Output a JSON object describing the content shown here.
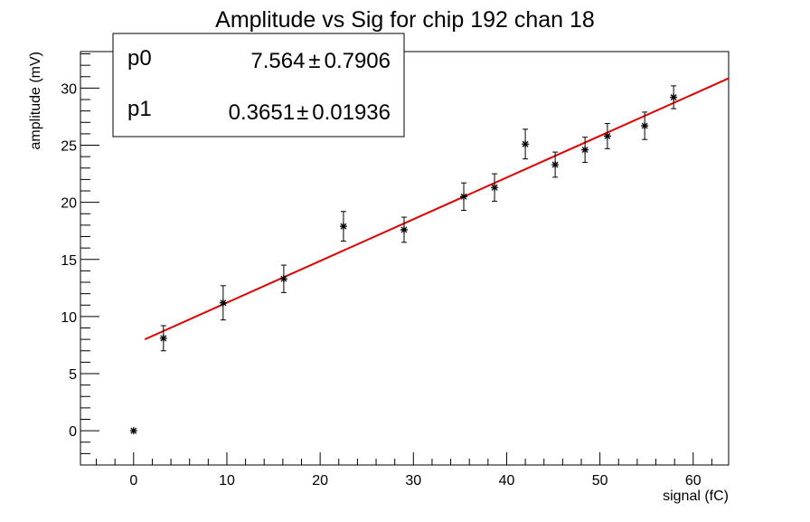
{
  "chart_data": {
    "type": "scatter",
    "title": "Amplitude vs Sig for chip 192 chan 18",
    "xlabel": "signal (fC)",
    "ylabel": "amplitude (mV)",
    "xlim": [
      -5.7,
      63.8
    ],
    "ylim": [
      -3.0,
      33.2
    ],
    "x_ticks": [
      0,
      10,
      20,
      30,
      40,
      50,
      60
    ],
    "y_ticks": [
      0,
      5,
      10,
      15,
      20,
      25,
      30
    ],
    "grid": false,
    "series": [
      {
        "type": "errorbar",
        "color": "#000000",
        "points": [
          {
            "x": 0.0,
            "y": 0.0,
            "err": 0.0
          },
          {
            "x": 3.2,
            "y": 8.1,
            "err": 1.1
          },
          {
            "x": 9.6,
            "y": 11.2,
            "err": 1.5
          },
          {
            "x": 16.1,
            "y": 13.3,
            "err": 1.2
          },
          {
            "x": 22.5,
            "y": 17.9,
            "err": 1.3
          },
          {
            "x": 29.0,
            "y": 17.6,
            "err": 1.1
          },
          {
            "x": 35.4,
            "y": 20.5,
            "err": 1.2
          },
          {
            "x": 38.7,
            "y": 21.3,
            "err": 1.2
          },
          {
            "x": 42.0,
            "y": 25.1,
            "err": 1.3
          },
          {
            "x": 45.2,
            "y": 23.3,
            "err": 1.1
          },
          {
            "x": 48.4,
            "y": 24.6,
            "err": 1.1
          },
          {
            "x": 50.8,
            "y": 25.8,
            "err": 1.1
          },
          {
            "x": 54.8,
            "y": 26.7,
            "err": 1.2
          },
          {
            "x": 57.9,
            "y": 29.2,
            "err": 1.0
          }
        ]
      },
      {
        "type": "line",
        "color": "#e00000",
        "fit": {
          "p0": 7.564,
          "p1": 0.3651,
          "x_range": [
            1.2,
            63.8
          ]
        }
      }
    ],
    "stats_box": {
      "placement": "top-left",
      "rows": [
        {
          "name": "p0",
          "value": "7.564",
          "pm": "±",
          "error": "0.7906"
        },
        {
          "name": "p1",
          "value": "0.3651",
          "pm": "±",
          "error": "0.01936"
        }
      ]
    }
  }
}
